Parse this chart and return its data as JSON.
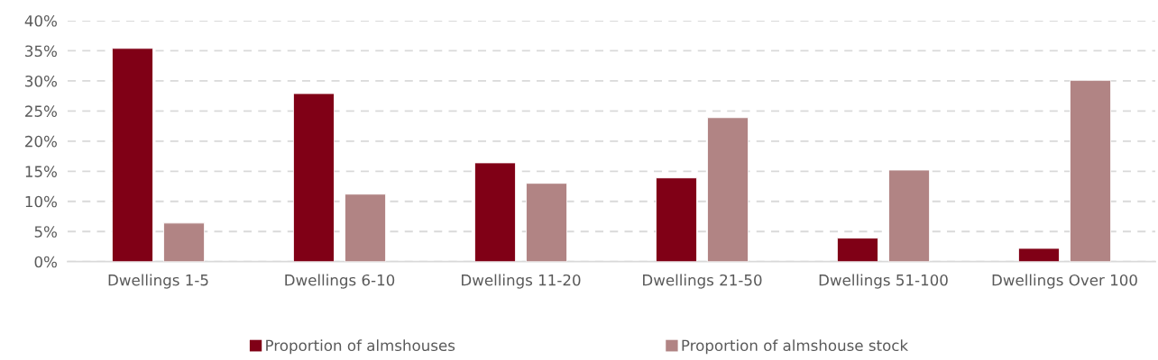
{
  "chart_data": {
    "type": "bar",
    "categories": [
      "Dwellings 1-5",
      "Dwellings 6-10",
      "Dwellings 11-20",
      "Dwellings 21-50",
      "Dwellings 51-100",
      "Dwellings Over 100"
    ],
    "series": [
      {
        "name": "Proportion of almshouses",
        "color": "#800016",
        "values": [
          35.4,
          27.9,
          16.4,
          13.9,
          3.9,
          2.2
        ]
      },
      {
        "name": "Proportion of almshouse stock",
        "color": "#b18484",
        "values": [
          6.4,
          11.2,
          13.0,
          23.9,
          15.2,
          30.1
        ]
      }
    ],
    "ylim": [
      0,
      40
    ],
    "yticks": [
      {
        "value": 0,
        "label": "0%"
      },
      {
        "value": 5,
        "label": "5%"
      },
      {
        "value": 10,
        "label": "10%"
      },
      {
        "value": 15,
        "label": "15%"
      },
      {
        "value": 20,
        "label": "20%"
      },
      {
        "value": 25,
        "label": "25%"
      },
      {
        "value": 30,
        "label": "30%"
      },
      {
        "value": 35,
        "label": "35%"
      },
      {
        "value": 40,
        "label": "40%"
      }
    ],
    "grid": "y",
    "legend": "bottom"
  }
}
